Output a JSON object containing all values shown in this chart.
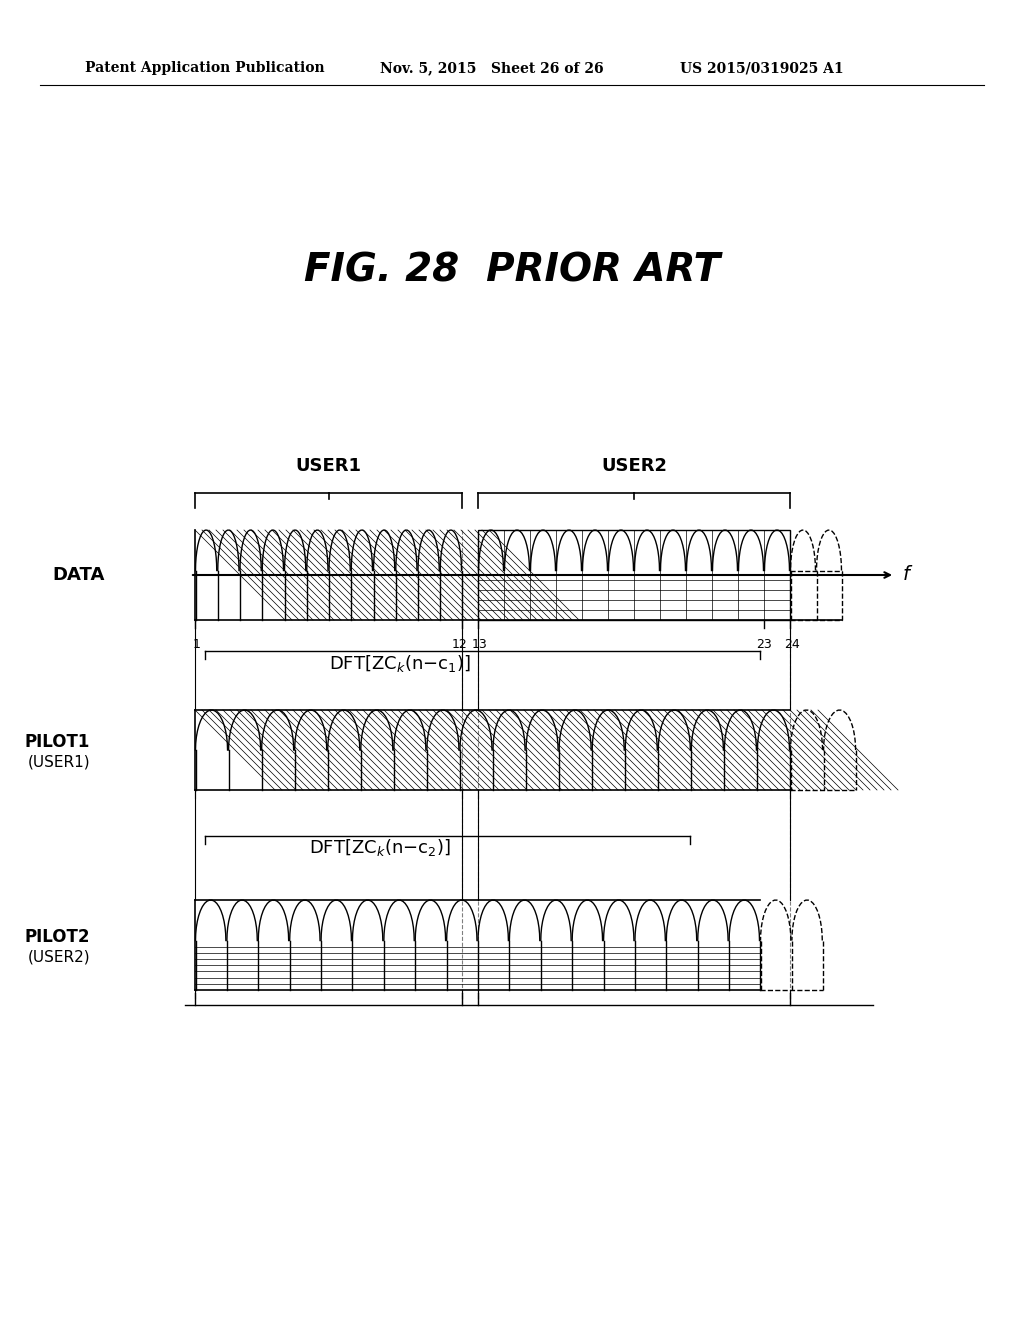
{
  "header_left": "Patent Application Publication",
  "header_mid": "Nov. 5, 2015   Sheet 26 of 26",
  "header_right": "US 2015/0319025 A1",
  "fig_title": "FIG. 28  PRIOR ART",
  "row_labels": [
    "DATA",
    "PILOT1\n(USER1)",
    "PILOT2\n(USER2)"
  ],
  "user1_label": "USER1",
  "user2_label": "USER2",
  "dft_label1": "DFT[ZCₖ(n−c₁)]",
  "dft_label2": "DFT[ZCₖ(n−c₂)]",
  "freq_label": "f",
  "num_data_user1": 12,
  "num_data_user2": 12,
  "num_pilot1": 18,
  "num_pilot2": 18,
  "numbers": [
    "1",
    "12",
    "13",
    "23",
    "24"
  ],
  "bg_color": "#ffffff",
  "line_color": "#000000"
}
